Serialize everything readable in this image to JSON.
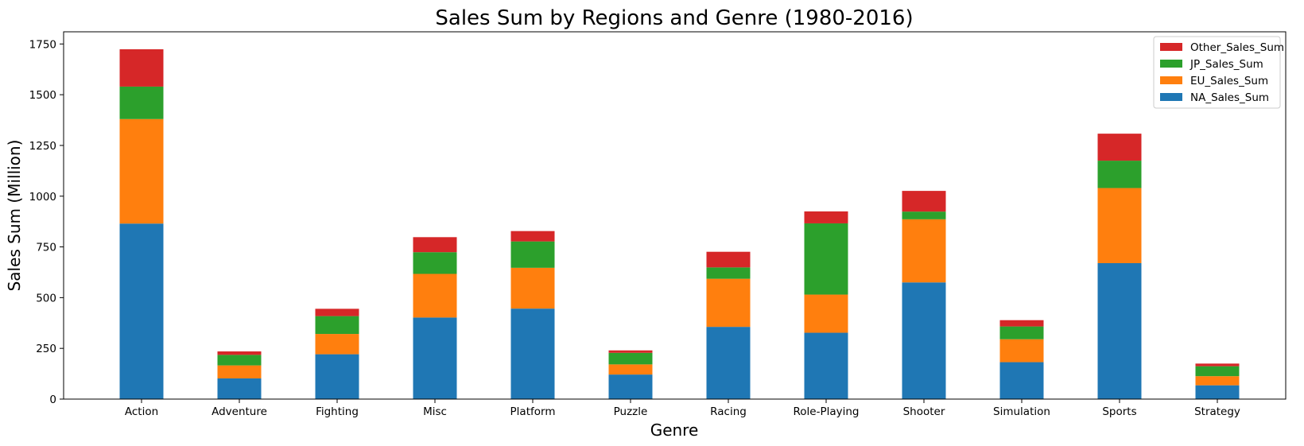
{
  "chart_data": {
    "type": "bar",
    "stacked": true,
    "title": "Sales Sum by Regions and Genre (1980-2016)",
    "xlabel": "Genre",
    "ylabel": "Sales Sum (Million)",
    "ylim": [
      0,
      1810
    ],
    "yticks": [
      0,
      250,
      500,
      750,
      1000,
      1250,
      1500,
      1750
    ],
    "grid": false,
    "legend_position": "top-right",
    "categories": [
      "Action",
      "Adventure",
      "Fighting",
      "Misc",
      "Platform",
      "Puzzle",
      "Racing",
      "Role-Playing",
      "Shooter",
      "Simulation",
      "Sports",
      "Strategy"
    ],
    "series": [
      {
        "name": "NA_Sales_Sum",
        "color": "#1f77b4",
        "values": [
          865,
          102,
          221,
          402,
          446,
          121,
          356,
          327,
          575,
          182,
          670,
          68
        ]
      },
      {
        "name": "EU_Sales_Sum",
        "color": "#ff7f0e",
        "values": [
          515,
          64,
          100,
          215,
          201,
          50,
          237,
          188,
          311,
          113,
          370,
          45
        ]
      },
      {
        "name": "JP_Sales_Sum",
        "color": "#2ca02c",
        "values": [
          160,
          52,
          88,
          107,
          130,
          57,
          56,
          351,
          38,
          63,
          135,
          49
        ]
      },
      {
        "name": "Other_Sales_Sum",
        "color": "#d62728",
        "values": [
          184,
          17,
          36,
          74,
          51,
          12,
          77,
          59,
          102,
          31,
          133,
          13
        ]
      }
    ],
    "legend_order": [
      "Other_Sales_Sum",
      "JP_Sales_Sum",
      "EU_Sales_Sum",
      "NA_Sales_Sum"
    ]
  }
}
